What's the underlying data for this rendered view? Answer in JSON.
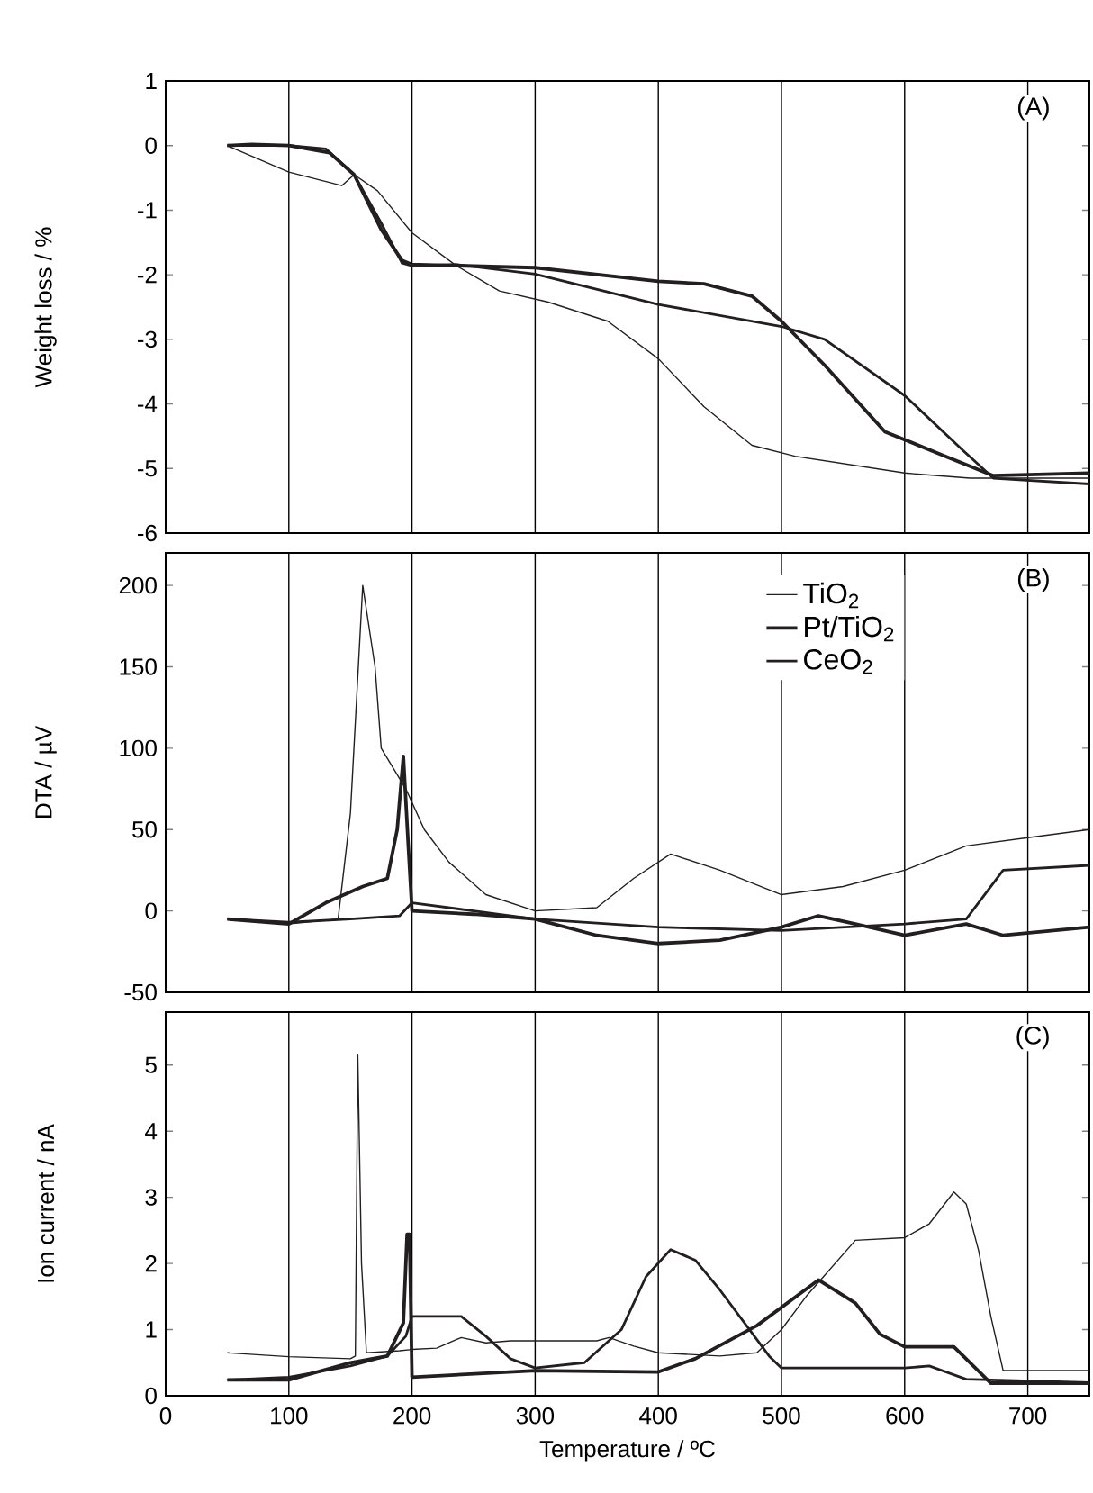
{
  "chart_data": [
    {
      "type": "line",
      "ylabel": "Weight loss / %",
      "annotations": [
        "(A)"
      ],
      "xlim": [
        0,
        750
      ],
      "xticks": [
        0,
        100,
        200,
        300,
        400,
        500,
        600,
        700
      ],
      "ylim": [
        -6,
        1
      ],
      "yticks": [
        -6,
        -5,
        -4,
        -3,
        -2,
        -1,
        0,
        1
      ],
      "tick_labels": "y",
      "grid": "x",
      "series": [
        {
          "color": "#231f20",
          "x": [
            50,
            100,
            143,
            153,
            172,
            200,
            236,
            271,
            310,
            359,
            400,
            437,
            476,
            511,
            600,
            653,
            750
          ],
          "values": [
            0,
            -0.41,
            -0.62,
            -0.45,
            -0.7,
            -1.35,
            -1.86,
            -2.25,
            -2.42,
            -2.72,
            -3.3,
            -4.04,
            -4.64,
            -4.81,
            -5.07,
            -5.15,
            -5.15
          ]
        },
        {
          "color": "#231f20",
          "x": [
            50,
            70,
            100,
            133,
            153,
            175,
            192,
            200,
            300,
            400,
            437,
            476,
            500,
            535,
            584,
            633,
            672,
            750
          ],
          "values": [
            0,
            0.02,
            0,
            -0.11,
            -0.45,
            -1.3,
            -1.78,
            -1.84,
            -1.89,
            -2.1,
            -2.14,
            -2.33,
            -2.72,
            -3.4,
            -4.43,
            -4.81,
            -5.11,
            -5.07
          ]
        },
        {
          "color": "#231f20",
          "x": [
            50,
            100,
            130,
            153,
            175,
            192,
            200,
            236,
            300,
            400,
            500,
            535,
            600,
            648,
            672,
            750
          ],
          "values": [
            0,
            0,
            -0.05,
            -0.45,
            -1.2,
            -1.82,
            -1.86,
            -1.84,
            -1.99,
            -2.46,
            -2.8,
            -3.0,
            -3.87,
            -4.73,
            -5.15,
            -5.24
          ]
        }
      ]
    },
    {
      "type": "line",
      "ylabel": "DTA / µV",
      "annotations": [
        "(B)"
      ],
      "xlim": [
        0,
        750
      ],
      "xticks": [
        0,
        100,
        200,
        300,
        400,
        500,
        600,
        700
      ],
      "ylim": [
        -50,
        220
      ],
      "yticks": [
        -50,
        0,
        50,
        100,
        150,
        200
      ],
      "tick_labels": "y",
      "grid": "x",
      "legend": "top right",
      "series": [
        {
          "name": "TiO$_{2}$",
          "color": "#231f20",
          "x": [
            50,
            100,
            140,
            150,
            160,
            170,
            175,
            195,
            210,
            230,
            260,
            300,
            350,
            380,
            410,
            450,
            500,
            550,
            600,
            650,
            700,
            750
          ],
          "values": [
            -5,
            -8,
            -5,
            60,
            200,
            150,
            100,
            75,
            50,
            30,
            10,
            0,
            2,
            20,
            35,
            25,
            10,
            15,
            25,
            40,
            45,
            50
          ]
        },
        {
          "name": "Pt/TiO$_{2}$",
          "color": "#231f20",
          "x": [
            50,
            100,
            130,
            160,
            180,
            188,
            193,
            197,
            200,
            250,
            300,
            350,
            400,
            450,
            500,
            530,
            560,
            600,
            650,
            680,
            750
          ],
          "values": [
            -5,
            -8,
            5,
            15,
            20,
            50,
            95,
            40,
            0,
            -2,
            -5,
            -15,
            -20,
            -18,
            -10,
            -3,
            -8,
            -15,
            -8,
            -15,
            -10
          ]
        },
        {
          "name": "CeO$_{2}$",
          "color": "#231f20",
          "x": [
            50,
            100,
            150,
            190,
            200,
            250,
            300,
            400,
            500,
            600,
            650,
            665,
            680,
            750
          ],
          "values": [
            -5,
            -7,
            -5,
            -3,
            5,
            0,
            -5,
            -10,
            -12,
            -8,
            -5,
            10,
            25,
            28
          ]
        }
      ]
    },
    {
      "type": "line",
      "xlabel": "Temperature / ºC",
      "ylabel": "Ion current / nA",
      "annotations": [
        "(C)"
      ],
      "xlim": [
        0,
        750
      ],
      "xticks": [
        0,
        100,
        200,
        300,
        400,
        500,
        600,
        700
      ],
      "ylim": [
        0,
        5.8
      ],
      "yticks": [
        0,
        1,
        2,
        3,
        4,
        5
      ],
      "grid": "x",
      "series": [
        {
          "color": "#231f20",
          "x": [
            50,
            100,
            150,
            154,
            156,
            159,
            163,
            190,
            200,
            220,
            240,
            260,
            280,
            350,
            360,
            380,
            400,
            450,
            480,
            500,
            520,
            560,
            600,
            620,
            640,
            650,
            660,
            670,
            680,
            750
          ],
          "values": [
            0.65,
            0.59,
            0.56,
            0.6,
            5.15,
            2,
            0.65,
            0.68,
            0.7,
            0.72,
            0.88,
            0.8,
            0.83,
            0.83,
            0.88,
            0.75,
            0.65,
            0.6,
            0.65,
            1.0,
            1.5,
            2.35,
            2.39,
            2.6,
            3.08,
            2.9,
            2.2,
            1.2,
            0.38,
            0.38
          ]
        },
        {
          "color": "#231f20",
          "x": [
            50,
            100,
            150,
            180,
            193,
            196,
            198,
            200,
            300,
            400,
            430,
            480,
            530,
            560,
            580,
            600,
            640,
            670,
            750
          ],
          "values": [
            0.24,
            0.24,
            0.5,
            0.6,
            1.1,
            2.44,
            2.44,
            0.28,
            0.38,
            0.36,
            0.56,
            1.06,
            1.75,
            1.4,
            0.93,
            0.74,
            0.74,
            0.19,
            0.19
          ]
        },
        {
          "color": "#231f20",
          "x": [
            50,
            100,
            150,
            180,
            195,
            200,
            240,
            260,
            280,
            300,
            340,
            370,
            390,
            410,
            430,
            450,
            470,
            490,
            500,
            600,
            620,
            650,
            750
          ],
          "values": [
            0.24,
            0.28,
            0.45,
            0.6,
            0.9,
            1.2,
            1.2,
            0.9,
            0.56,
            0.42,
            0.5,
            1.0,
            1.8,
            2.21,
            2.05,
            1.6,
            1.1,
            0.6,
            0.42,
            0.42,
            0.45,
            0.25,
            0.2
          ]
        }
      ]
    }
  ]
}
